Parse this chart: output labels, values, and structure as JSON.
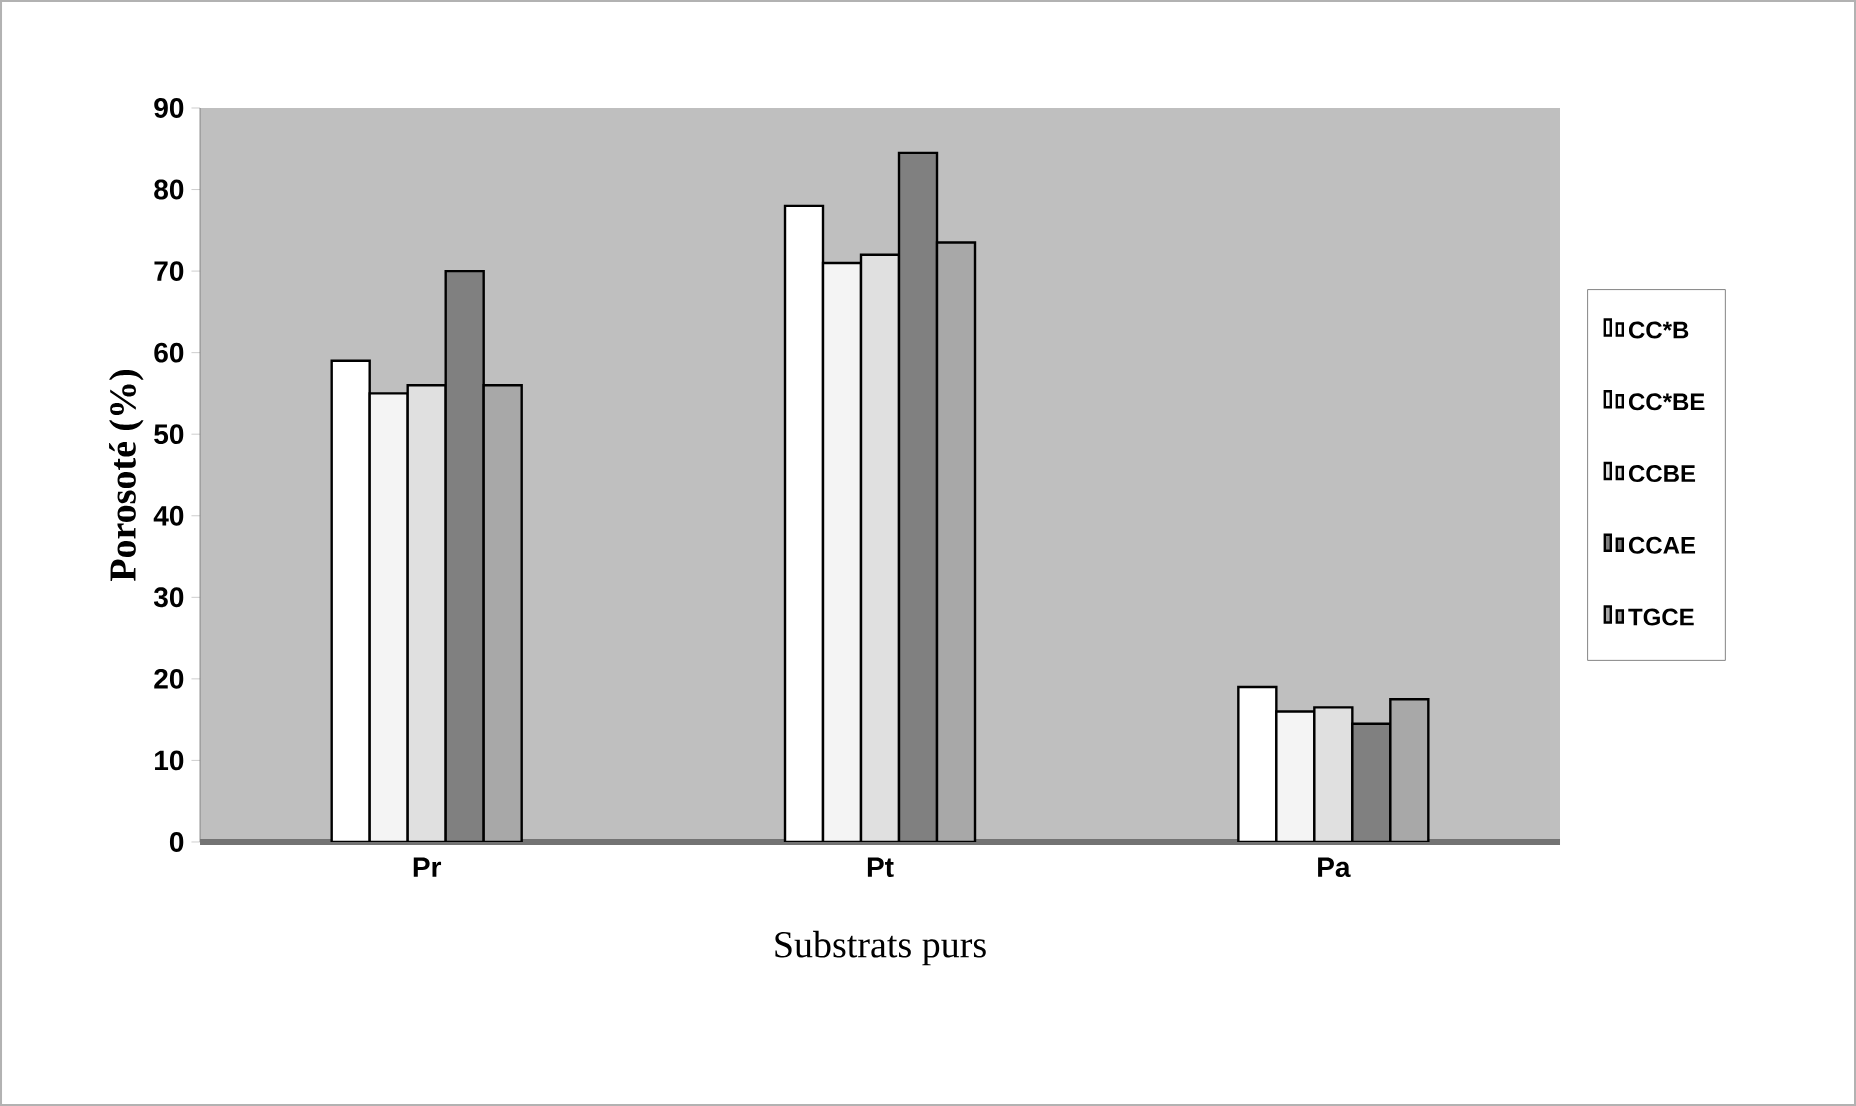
{
  "chart_data": {
    "type": "bar",
    "xlabel": "Substrats purs",
    "ylabel": "Porosoté (%)",
    "categories": [
      "Pr",
      "Pt",
      "Pa"
    ],
    "series": [
      {
        "name": "CC*B",
        "color": "#ffffff",
        "values": [
          59,
          78,
          19
        ]
      },
      {
        "name": "CC*BE",
        "color": "#f4f4f4",
        "values": [
          55,
          71,
          16
        ]
      },
      {
        "name": "CCBE",
        "color": "#e0e0e0",
        "values": [
          56,
          72,
          16.5
        ]
      },
      {
        "name": "CCAE",
        "color": "#808080",
        "values": [
          70,
          84.5,
          14.5
        ]
      },
      {
        "name": "TGCE",
        "color": "#a8a8a8",
        "values": [
          56,
          73.5,
          17.5
        ]
      }
    ],
    "ylim": [
      0,
      90
    ],
    "yticks": [
      0,
      10,
      20,
      30,
      40,
      50,
      60,
      70,
      80,
      90
    ],
    "grid": false,
    "legend": "right"
  }
}
